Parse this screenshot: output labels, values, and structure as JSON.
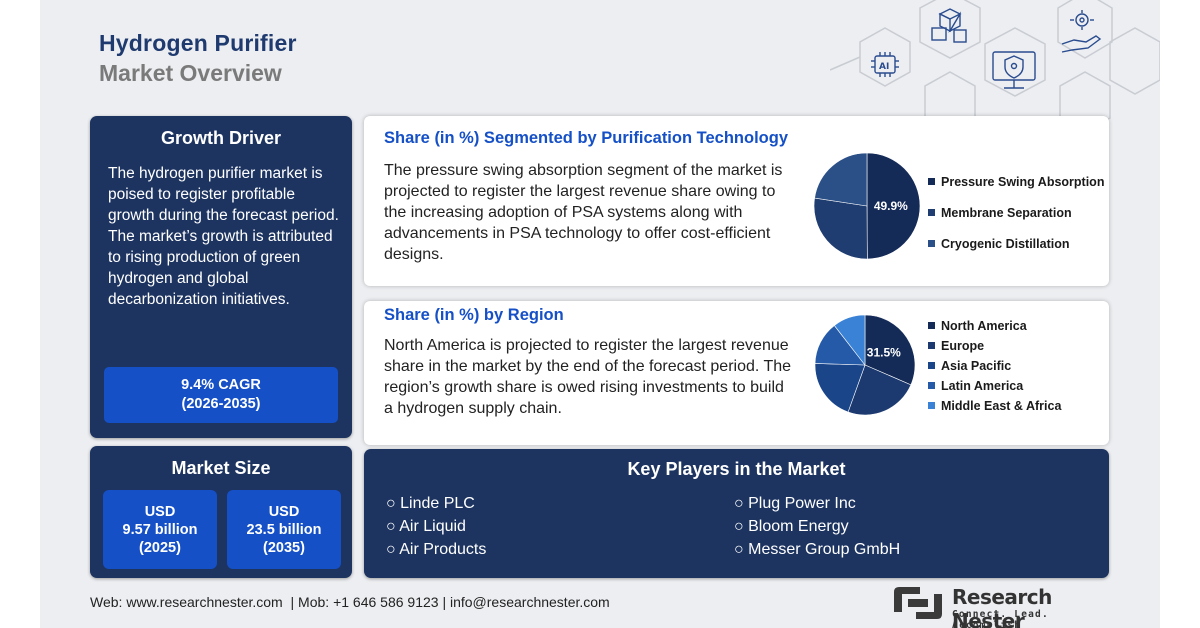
{
  "title": {
    "line1": "Hydrogen Purifier",
    "line2": "Market Overview"
  },
  "growth_driver": {
    "title": "Growth Driver",
    "text": "The hydrogen purifier market is poised to register profitable growth during the forecast period. The market’s growth is attributed to rising production of green hydrogen and global decarbonization initiatives.",
    "cagr": "9.4% CAGR",
    "cagr_period": "(2026-2035)"
  },
  "market_size": {
    "title": "Market Size",
    "box1": {
      "currency": "USD",
      "value": "9.57 billion",
      "year": "(2025)"
    },
    "box2": {
      "currency": "USD",
      "value": "23.5 billion",
      "year": "(2035)"
    }
  },
  "technology": {
    "title": "Share (in %) Segmented by Purification Technology",
    "text": "The pressure swing absorption segment of the market is projected to register the largest revenue share owing to the increasing adoption of PSA systems along with advancements in PSA technology to offer cost-efficient designs."
  },
  "region": {
    "title": "Share (in %) by Region",
    "text": "North America is projected to register the largest revenue share in the market by the end of the forecast period. The region’s growth share is owed rising investments to build a hydrogen supply chain."
  },
  "chart_data": [
    {
      "type": "pie",
      "categories": [
        "Pressure Swing Absorption",
        "Membrane Separation",
        "Cryogenic Distillation"
      ],
      "values": [
        49.9,
        27.5,
        22.6
      ],
      "data_labels": [
        "49.9%"
      ],
      "colors": [
        "#142a57",
        "#1f3d70",
        "#2b4f87"
      ],
      "legend": "right"
    },
    {
      "type": "pie",
      "categories": [
        "North America",
        "Europe",
        "Asia Pacific",
        "Latin America",
        "Middle East & Africa"
      ],
      "values": [
        31.5,
        24,
        20,
        14,
        10.5
      ],
      "data_labels": [
        "31.5%"
      ],
      "colors": [
        "#142a57",
        "#1c3a70",
        "#1a4589",
        "#245aa8",
        "#3a82d6"
      ],
      "legend": "right"
    }
  ],
  "key_players": {
    "title": "Key Players in the Market",
    "left": [
      "Linde PLC",
      "Air Liquid",
      "Air Products"
    ],
    "right": [
      "Plug Power Inc",
      "Bloom Energy",
      "Messer Group GmbH"
    ]
  },
  "footer": {
    "web_label": "Web:",
    "web": "www.researchnester.com",
    "mob_label": "| Mob:",
    "mob": "+1 646 586 9123",
    "email_sep": "|",
    "email": "info@researchnester.com"
  },
  "logo": {
    "name": "Research Nester",
    "tagline": "Connect. Lead. Accomplish"
  },
  "hex_icons": [
    "ai-chip-icon",
    "cubes-icon",
    "monitor-shield-icon",
    "gear-hand-icon"
  ]
}
